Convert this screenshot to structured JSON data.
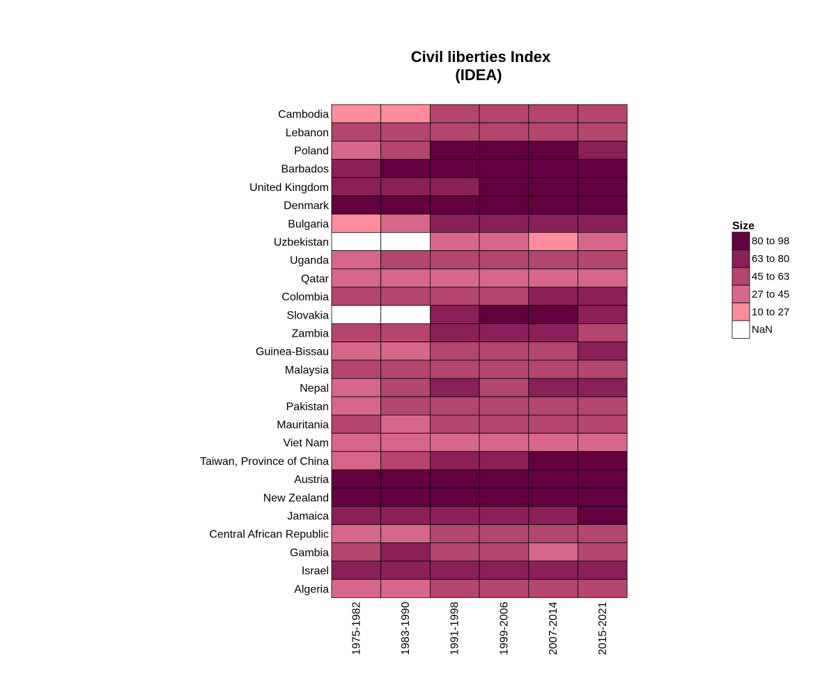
{
  "chart_data": {
    "type": "heatmap",
    "title_lines": [
      "Civil liberties Index",
      "(IDEA)"
    ],
    "x_categories": [
      "1975-1982",
      "1983-1990",
      "1991-1998",
      "1999-2006",
      "2007-2014",
      "2015-2021"
    ],
    "y_categories": [
      "Cambodia",
      "Lebanon",
      "Poland",
      "Barbados",
      "United Kingdom",
      "Denmark",
      "Bulgaria",
      "Uzbekistan",
      "Uganda",
      "Qatar",
      "Colombia",
      "Slovakia",
      "Zambia",
      "Guinea-Bissau",
      "Malaysia",
      "Nepal",
      "Pakistan",
      "Mauritania",
      "Viet Nam",
      "Taiwan, Province of China",
      "Austria",
      "New Zealand",
      "Jamaica",
      "Central African Republic",
      "Gambia",
      "Israel",
      "Algeria"
    ],
    "legend": {
      "title": "Size",
      "bins": [
        {
          "label": "80 to 98",
          "color": "#63003f"
        },
        {
          "label": "63 to 80",
          "color": "#8b1f5a"
        },
        {
          "label": "45 to 63",
          "color": "#b3456f"
        },
        {
          "label": "27 to 45",
          "color": "#d7678a"
        },
        {
          "label": "10 to 27",
          "color": "#ff8c9c"
        },
        {
          "label": "NaN",
          "color": "#ffffff"
        }
      ]
    },
    "cell_bins": [
      [
        4,
        4,
        2,
        2,
        2,
        2
      ],
      [
        2,
        2,
        2,
        2,
        2,
        2
      ],
      [
        3,
        2,
        0,
        0,
        0,
        1
      ],
      [
        1,
        0,
        0,
        0,
        0,
        0
      ],
      [
        1,
        1,
        1,
        0,
        0,
        0
      ],
      [
        0,
        0,
        0,
        0,
        0,
        0
      ],
      [
        4,
        3,
        1,
        1,
        1,
        1
      ],
      [
        5,
        5,
        3,
        3,
        4,
        3
      ],
      [
        3,
        2,
        2,
        2,
        2,
        2
      ],
      [
        3,
        3,
        3,
        3,
        3,
        3
      ],
      [
        2,
        2,
        2,
        2,
        1,
        1
      ],
      [
        5,
        5,
        1,
        0,
        0,
        1
      ],
      [
        2,
        2,
        1,
        1,
        1,
        2
      ],
      [
        3,
        3,
        2,
        2,
        2,
        1
      ],
      [
        2,
        2,
        2,
        2,
        2,
        2
      ],
      [
        3,
        2,
        1,
        2,
        1,
        1
      ],
      [
        3,
        2,
        2,
        2,
        2,
        2
      ],
      [
        2,
        3,
        2,
        2,
        2,
        2
      ],
      [
        3,
        3,
        3,
        3,
        3,
        3
      ],
      [
        3,
        2,
        1,
        1,
        0,
        0
      ],
      [
        0,
        0,
        0,
        0,
        0,
        0
      ],
      [
        0,
        0,
        0,
        0,
        0,
        0
      ],
      [
        1,
        1,
        1,
        1,
        1,
        0
      ],
      [
        3,
        3,
        2,
        2,
        2,
        2
      ],
      [
        2,
        1,
        2,
        2,
        3,
        2
      ],
      [
        1,
        1,
        1,
        1,
        1,
        1
      ],
      [
        3,
        3,
        2,
        2,
        2,
        2
      ]
    ]
  }
}
